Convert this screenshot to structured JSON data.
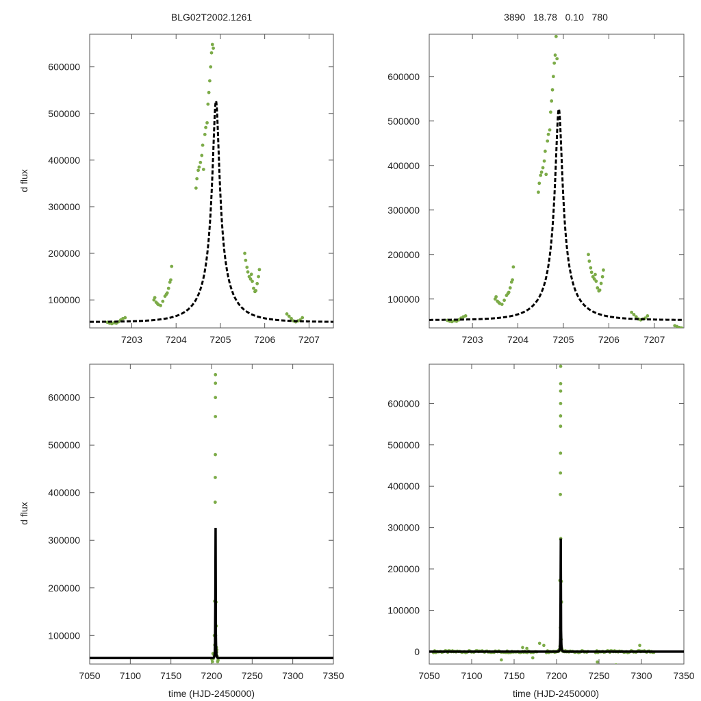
{
  "colors": {
    "data_points": "#7cab48",
    "model_curve": "#000000",
    "frame": "#555555",
    "text": "#222222"
  },
  "chart_data": [
    {
      "type": "scatter",
      "panel": "top-left",
      "title": "BLG02T2002.1261",
      "xlabel": "",
      "ylabel": "d flux",
      "xlim": [
        7202.05,
        7207.55
      ],
      "ylim": [
        40000,
        670000
      ],
      "xticks": [
        7203,
        7204,
        7205,
        7206,
        7207
      ],
      "yticks": [
        100000,
        200000,
        300000,
        400000,
        500000,
        600000
      ],
      "model": {
        "t0": 7204.9,
        "u0": 0.1,
        "tE": 0.78,
        "fs": 52500,
        "fb": 0
      },
      "series": [
        {
          "name": "data",
          "points": [
            [
              7202.45,
              52000
            ],
            [
              7202.5,
              50000
            ],
            [
              7202.55,
              49000
            ],
            [
              7202.6,
              51000
            ],
            [
              7202.65,
              50000
            ],
            [
              7202.7,
              53000
            ],
            [
              7202.75,
              57000
            ],
            [
              7202.8,
              60000
            ],
            [
              7202.85,
              62000
            ],
            [
              7203.5,
              100000
            ],
            [
              7203.52,
              105000
            ],
            [
              7203.55,
              95000
            ],
            [
              7203.58,
              92000
            ],
            [
              7203.6,
              90000
            ],
            [
              7203.65,
              88000
            ],
            [
              7203.7,
              97000
            ],
            [
              7203.75,
              108000
            ],
            [
              7203.78,
              112000
            ],
            [
              7203.8,
              115000
            ],
            [
              7203.83,
              125000
            ],
            [
              7203.86,
              138000
            ],
            [
              7203.88,
              143000
            ],
            [
              7203.9,
              172000
            ],
            [
              7204.45,
              340000
            ],
            [
              7204.47,
              360000
            ],
            [
              7204.5,
              378000
            ],
            [
              7204.52,
              385000
            ],
            [
              7204.55,
              395000
            ],
            [
              7204.58,
              410000
            ],
            [
              7204.6,
              432000
            ],
            [
              7204.62,
              380000
            ],
            [
              7204.65,
              455000
            ],
            [
              7204.67,
              470000
            ],
            [
              7204.7,
              480000
            ],
            [
              7204.72,
              520000
            ],
            [
              7204.74,
              545000
            ],
            [
              7204.76,
              570000
            ],
            [
              7204.78,
              600000
            ],
            [
              7204.8,
              630000
            ],
            [
              7204.82,
              648000
            ],
            [
              7204.84,
              640000
            ],
            [
              7205.55,
              200000
            ],
            [
              7205.57,
              185000
            ],
            [
              7205.6,
              170000
            ],
            [
              7205.62,
              160000
            ],
            [
              7205.65,
              150000
            ],
            [
              7205.68,
              145000
            ],
            [
              7205.7,
              155000
            ],
            [
              7205.72,
              140000
            ],
            [
              7205.75,
              125000
            ],
            [
              7205.78,
              118000
            ],
            [
              7205.8,
              120000
            ],
            [
              7205.83,
              135000
            ],
            [
              7205.86,
              150000
            ],
            [
              7205.88,
              165000
            ],
            [
              7206.5,
              70000
            ],
            [
              7206.55,
              65000
            ],
            [
              7206.6,
              60000
            ],
            [
              7206.65,
              55000
            ],
            [
              7206.7,
              53000
            ],
            [
              7206.75,
              55000
            ],
            [
              7206.8,
              57000
            ],
            [
              7206.85,
              62000
            ]
          ]
        }
      ]
    },
    {
      "type": "scatter",
      "panel": "top-right",
      "title": "3890   18.78   0.10   780",
      "xlabel": "",
      "ylabel": "",
      "xlim": [
        7202.05,
        7207.65
      ],
      "ylim": [
        35000,
        695000
      ],
      "xticks": [
        7203,
        7204,
        7205,
        7206,
        7207
      ],
      "yticks": [
        100000,
        200000,
        300000,
        400000,
        500000,
        600000
      ],
      "model": {
        "t0": 7204.9,
        "u0": 0.1,
        "tE": 0.78,
        "fs": 52500,
        "fb": 0
      },
      "series": [
        {
          "name": "data",
          "points": [
            [
              7202.45,
              52000
            ],
            [
              7202.5,
              50000
            ],
            [
              7202.55,
              49000
            ],
            [
              7202.6,
              51000
            ],
            [
              7202.65,
              50000
            ],
            [
              7202.7,
              53000
            ],
            [
              7202.75,
              57000
            ],
            [
              7202.8,
              60000
            ],
            [
              7202.85,
              62000
            ],
            [
              7203.5,
              100000
            ],
            [
              7203.52,
              105000
            ],
            [
              7203.55,
              95000
            ],
            [
              7203.58,
              92000
            ],
            [
              7203.6,
              90000
            ],
            [
              7203.65,
              88000
            ],
            [
              7203.7,
              97000
            ],
            [
              7203.75,
              108000
            ],
            [
              7203.78,
              112000
            ],
            [
              7203.8,
              115000
            ],
            [
              7203.83,
              125000
            ],
            [
              7203.86,
              138000
            ],
            [
              7203.88,
              143000
            ],
            [
              7203.9,
              172000
            ],
            [
              7204.45,
              340000
            ],
            [
              7204.47,
              360000
            ],
            [
              7204.5,
              378000
            ],
            [
              7204.52,
              385000
            ],
            [
              7204.55,
              395000
            ],
            [
              7204.58,
              410000
            ],
            [
              7204.6,
              432000
            ],
            [
              7204.62,
              380000
            ],
            [
              7204.65,
              455000
            ],
            [
              7204.67,
              470000
            ],
            [
              7204.7,
              480000
            ],
            [
              7204.72,
              520000
            ],
            [
              7204.74,
              545000
            ],
            [
              7204.76,
              570000
            ],
            [
              7204.78,
              600000
            ],
            [
              7204.8,
              630000
            ],
            [
              7204.82,
              648000
            ],
            [
              7204.84,
              690000
            ],
            [
              7204.86,
              640000
            ],
            [
              7205.55,
              200000
            ],
            [
              7205.57,
              185000
            ],
            [
              7205.6,
              170000
            ],
            [
              7205.62,
              160000
            ],
            [
              7205.65,
              150000
            ],
            [
              7205.68,
              145000
            ],
            [
              7205.7,
              155000
            ],
            [
              7205.72,
              140000
            ],
            [
              7205.75,
              125000
            ],
            [
              7205.78,
              118000
            ],
            [
              7205.8,
              120000
            ],
            [
              7205.83,
              135000
            ],
            [
              7205.86,
              150000
            ],
            [
              7205.88,
              165000
            ],
            [
              7206.5,
              70000
            ],
            [
              7206.55,
              65000
            ],
            [
              7206.6,
              60000
            ],
            [
              7206.65,
              55000
            ],
            [
              7206.7,
              53000
            ],
            [
              7206.75,
              55000
            ],
            [
              7206.8,
              57000
            ],
            [
              7206.85,
              62000
            ],
            [
              7207.45,
              40000
            ],
            [
              7207.5,
              38000
            ],
            [
              7207.55,
              36000
            ],
            [
              7207.6,
              35000
            ]
          ]
        }
      ]
    },
    {
      "type": "scatter",
      "panel": "bottom-left",
      "title": "",
      "xlabel": "time (HJD-2450000)",
      "ylabel": "d flux",
      "xlim": [
        7050,
        7350
      ],
      "ylim": [
        40000,
        670000
      ],
      "xticks": [
        7050,
        7100,
        7150,
        7200,
        7250,
        7300,
        7350
      ],
      "yticks": [
        100000,
        200000,
        300000,
        400000,
        500000,
        600000
      ],
      "model": {
        "t0": 7204.9,
        "u0": 0.1,
        "tE": 0.78,
        "fs": 52500,
        "fb": 0
      },
      "series": [
        {
          "name": "data",
          "points": [
            [
              7202.4,
              52000
            ],
            [
              7202.8,
              60000
            ],
            [
              7203.5,
              100000
            ],
            [
              7203.9,
              172000
            ],
            [
              7204.5,
              380000
            ],
            [
              7204.6,
              432000
            ],
            [
              7204.7,
              480000
            ],
            [
              7204.78,
              560000
            ],
            [
              7204.8,
              600000
            ],
            [
              7204.82,
              630000
            ],
            [
              7204.84,
              648000
            ],
            [
              7205.6,
              170000
            ],
            [
              7205.8,
              120000
            ],
            [
              7206.5,
              70000
            ],
            [
              7206.8,
              57000
            ],
            [
              7207.5,
              45000
            ],
            [
              7200.5,
              50000
            ],
            [
              7201.2,
              45000
            ],
            [
              7203.0,
              60000
            ],
            [
              7204.0,
              80000
            ],
            [
              7205.0,
              100000
            ],
            [
              7206.0,
              75000
            ],
            [
              7207.0,
              55000
            ],
            [
              7208.0,
              48000
            ],
            [
              7201.8,
              62000
            ],
            [
              7206.3,
              65000
            ]
          ]
        }
      ]
    },
    {
      "type": "scatter",
      "panel": "bottom-right",
      "title": "",
      "xlabel": "time (HJD-2450000)",
      "ylabel": "",
      "xlim": [
        7050,
        7350
      ],
      "ylim": [
        -30000,
        695000
      ],
      "xticks": [
        7050,
        7100,
        7150,
        7200,
        7250,
        7300,
        7350
      ],
      "yticks": [
        0,
        100000,
        200000,
        300000,
        400000,
        500000,
        600000
      ],
      "model": {
        "t0": 7204.9,
        "u0": 0.1,
        "tE": 0.78,
        "fs": 52500,
        "fb": 0
      },
      "baseline": {
        "offset": -52500,
        "segments": [
          [
            7055,
            7178
          ],
          [
            7188,
            7238
          ],
          [
            7246,
            7315
          ]
        ],
        "step": 1.4,
        "scatter": 5000,
        "outliers": [
          [
            7135,
            -20000
          ],
          [
            7172,
            -15000
          ],
          [
            7248,
            -25000
          ],
          [
            7270,
            -32000
          ],
          [
            7298,
            15000
          ],
          [
            7160,
            10000
          ],
          [
            7165,
            8000
          ],
          [
            7180,
            20000
          ],
          [
            7185,
            15000
          ]
        ]
      },
      "series": [
        {
          "name": "data",
          "points": [
            [
              7204.84,
              690000
            ],
            [
              7204.82,
              648000
            ],
            [
              7204.8,
              630000
            ],
            [
              7204.78,
              600000
            ],
            [
              7204.76,
              570000
            ],
            [
              7204.74,
              545000
            ],
            [
              7204.7,
              480000
            ],
            [
              7204.6,
              432000
            ],
            [
              7204.5,
              380000
            ],
            [
              7203.9,
              172000
            ],
            [
              7205.6,
              170000
            ],
            [
              7205.8,
              120000
            ]
          ]
        }
      ]
    }
  ]
}
